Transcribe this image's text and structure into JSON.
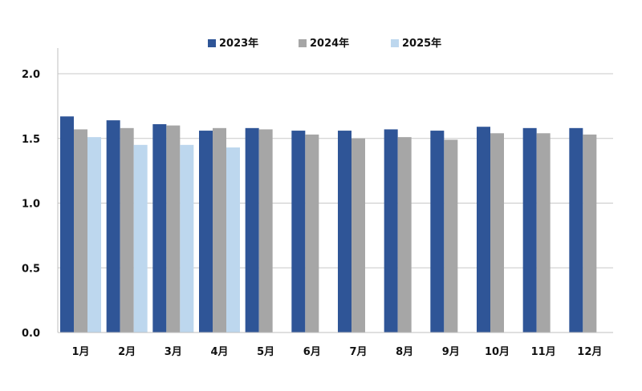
{
  "chart_data": {
    "type": "bar",
    "categories": [
      "1月",
      "2月",
      "3月",
      "4月",
      "5月",
      "6月",
      "7月",
      "8月",
      "9月",
      "10月",
      "11月",
      "12月"
    ],
    "series": [
      {
        "name": "2023年",
        "values": [
          1.67,
          1.64,
          1.61,
          1.56,
          1.58,
          1.56,
          1.56,
          1.57,
          1.56,
          1.59,
          1.58,
          1.58
        ]
      },
      {
        "name": "2024年",
        "values": [
          1.57,
          1.58,
          1.6,
          1.58,
          1.57,
          1.53,
          1.5,
          1.51,
          1.49,
          1.54,
          1.54,
          1.53
        ]
      },
      {
        "name": "2025年",
        "values": [
          1.51,
          1.45,
          1.45,
          1.43,
          null,
          null,
          null,
          null,
          null,
          null,
          null,
          null
        ]
      }
    ],
    "colors": [
      "#2f5597",
      "#a6a6a6",
      "#bdd7ee"
    ],
    "ylim": [
      0,
      2.0
    ],
    "yticks": [
      "0.0",
      "0.5",
      "1.0",
      "1.5",
      "2.0"
    ],
    "grid": true,
    "legend_position": "top-center"
  }
}
